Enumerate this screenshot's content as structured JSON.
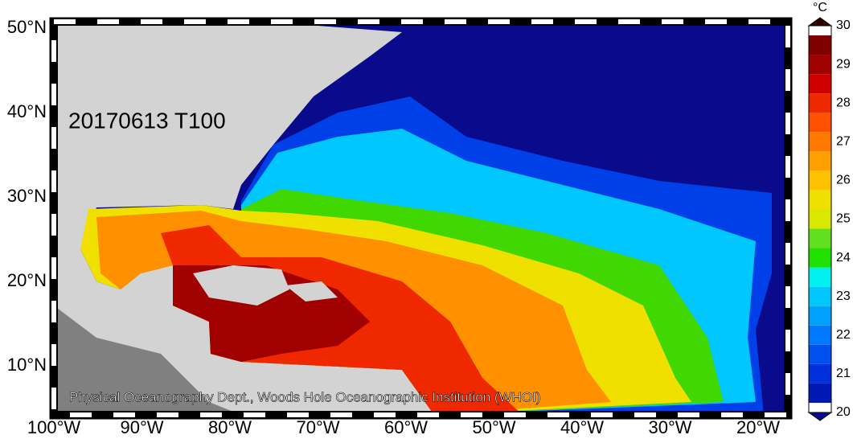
{
  "map": {
    "date_label": "20170613 T100",
    "credit": "Physical Oceanography Dept., Woods Hole Oceanographic Institution (WHOI)",
    "lat_labels": [
      "50°N",
      "40°N",
      "30°N",
      "20°N",
      "10°N"
    ],
    "lon_labels": [
      "100°W",
      "90°W",
      "80°W",
      "70°W",
      "60°W",
      "50°W",
      "40°W",
      "30°W",
      "20°W"
    ],
    "colorbar": {
      "unit": "°C",
      "ticks": [
        "30",
        "29",
        "28",
        "27",
        "26",
        "25",
        "24",
        "23",
        "22",
        "21",
        "20"
      ],
      "colors": [
        "#0a0a8c",
        "#0018b4",
        "#0030dc",
        "#0050f0",
        "#0078ff",
        "#00a0ff",
        "#00c8ff",
        "#00f0f0",
        "#20e000",
        "#60e020",
        "#d8e800",
        "#f0e000",
        "#ffc000",
        "#ffa000",
        "#ff7800",
        "#ff5000",
        "#f02800",
        "#d00000",
        "#a00000",
        "#800000",
        "#300000"
      ]
    }
  }
}
